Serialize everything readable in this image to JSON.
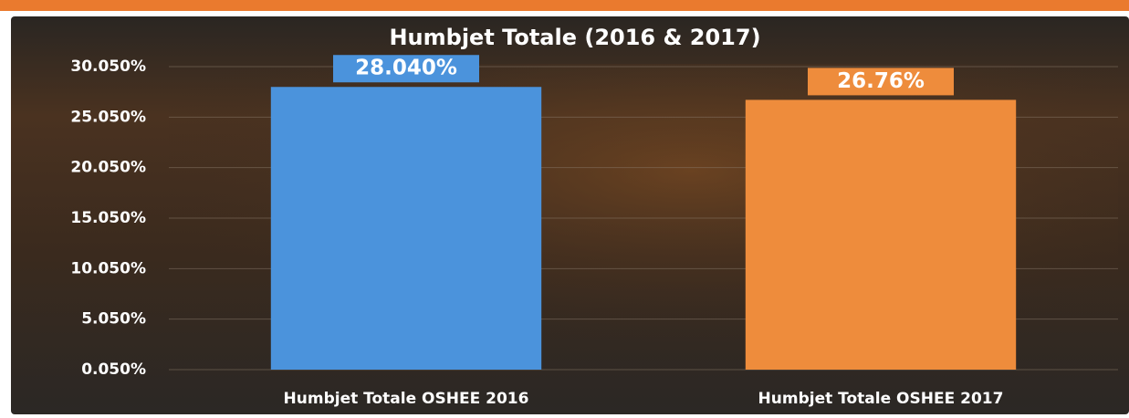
{
  "chart_data": {
    "type": "bar",
    "title": "Humbjet Totale (2016 & 2017)",
    "categories": [
      "Humbjet Totale OSHEE 2016",
      "Humbjet Totale OSHEE 2017"
    ],
    "values": [
      28.04,
      26.76
    ],
    "value_labels": [
      "28.040%",
      "26.76%"
    ],
    "colors": [
      "#4b93dc",
      "#ee8c3c"
    ],
    "ylim": [
      0.05,
      30.05
    ],
    "yticks": [
      {
        "value": 0.05,
        "label": "0.050%"
      },
      {
        "value": 5.05,
        "label": "5.050%"
      },
      {
        "value": 10.05,
        "label": "10.050%"
      },
      {
        "value": 15.05,
        "label": "15.050%"
      },
      {
        "value": 20.05,
        "label": "20.050%"
      },
      {
        "value": 25.05,
        "label": "25.050%"
      },
      {
        "value": 30.05,
        "label": "30.050%"
      }
    ],
    "grid": true
  }
}
